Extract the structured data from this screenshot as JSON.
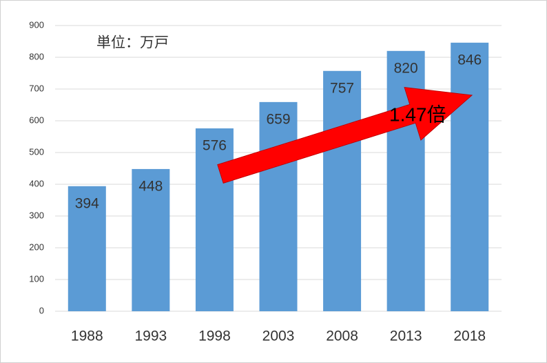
{
  "chart_data": {
    "type": "bar",
    "categories": [
      "1988",
      "1993",
      "1998",
      "2003",
      "2008",
      "2013",
      "2018"
    ],
    "values": [
      394,
      448,
      576,
      659,
      757,
      820,
      846
    ],
    "color": "#5b9bd5",
    "ylim": [
      0,
      900
    ],
    "yticks": [
      0,
      100,
      200,
      300,
      400,
      500,
      600,
      700,
      800,
      900
    ],
    "grid": true,
    "annotations": [
      "単位：万戸",
      "1.47倍"
    ]
  }
}
